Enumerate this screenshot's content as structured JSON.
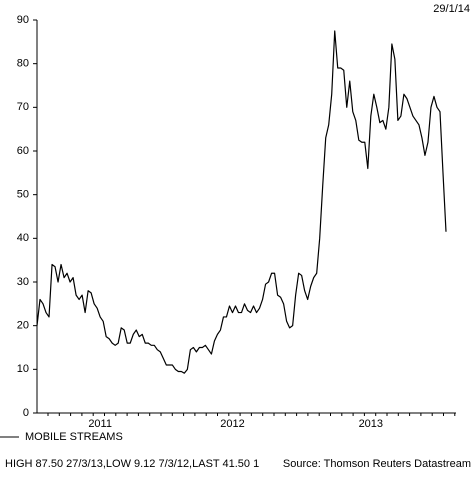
{
  "chart_data": {
    "type": "line",
    "date": "29/1/14",
    "legend_label": "MOBILE STREAMS",
    "footer": "HIGH 87.50 27/3/13,LOW 9.12 7/3/12,LAST 41.50 1",
    "source": "Source: Thomson Reuters Datastream",
    "ylim": [
      0,
      90
    ],
    "yticks": [
      0,
      10,
      20,
      30,
      40,
      50,
      60,
      70,
      80,
      90
    ],
    "color": "#000000",
    "categories": [
      null,
      null,
      null,
      null,
      null,
      null,
      null,
      null,
      null,
      null,
      null,
      null,
      null,
      null,
      null,
      null,
      null,
      null,
      null,
      null,
      null,
      "2011",
      null,
      null,
      null,
      null,
      null,
      null,
      null,
      null,
      null,
      null,
      null,
      null,
      null,
      null,
      null,
      null,
      null,
      null,
      null,
      null,
      null,
      null,
      null,
      null,
      null,
      null,
      null,
      null,
      null,
      null,
      null,
      null,
      null,
      null,
      null,
      null,
      null,
      null,
      null,
      null,
      null,
      null,
      null,
      "2012",
      null,
      null,
      null,
      null,
      null,
      null,
      null,
      null,
      null,
      null,
      null,
      null,
      null,
      null,
      null,
      null,
      null,
      null,
      null,
      null,
      null,
      null,
      null,
      null,
      null,
      null,
      null,
      null,
      null,
      null,
      null,
      null,
      null,
      null,
      null,
      null,
      null,
      null,
      null,
      null,
      null,
      null,
      null,
      null,
      null,
      "2013",
      null,
      null,
      null,
      null,
      null,
      null,
      null,
      null,
      null,
      null,
      null,
      null,
      null,
      null,
      null,
      null,
      null,
      null,
      null,
      null,
      null,
      null,
      null,
      null,
      null
    ],
    "values": [
      20,
      26,
      25,
      23,
      22,
      34,
      33.5,
      30,
      34,
      31,
      32,
      30,
      31,
      27,
      26,
      27,
      23,
      28,
      27.5,
      25,
      24,
      22,
      21,
      17.5,
      17,
      16,
      15.5,
      16,
      19.5,
      19,
      16,
      16,
      18,
      19,
      17.5,
      18,
      16,
      16,
      15.5,
      15.5,
      14.5,
      14,
      12.5,
      11,
      11,
      11,
      10,
      9.5,
      9.5,
      9.12,
      10,
      14.5,
      15,
      14,
      15,
      15,
      15.5,
      14.5,
      13.5,
      16.5,
      18,
      19,
      22,
      22,
      24.5,
      23,
      24.5,
      23,
      23,
      25,
      23.5,
      23,
      24.5,
      23,
      24,
      26,
      29.5,
      30,
      32,
      32,
      27,
      26.5,
      25,
      21,
      19.5,
      20,
      27,
      32,
      31.5,
      28,
      26,
      29,
      31,
      32,
      40,
      52,
      63,
      66,
      73,
      87.5,
      79,
      79,
      78.5,
      70,
      76,
      69,
      67,
      62.5,
      62,
      62,
      56,
      68,
      73,
      70,
      66.5,
      67,
      65,
      70,
      84.5,
      81,
      67,
      68,
      73,
      72,
      70,
      68,
      67,
      66,
      63,
      59,
      62,
      70,
      72.5,
      70,
      69,
      55,
      41.5
    ]
  }
}
